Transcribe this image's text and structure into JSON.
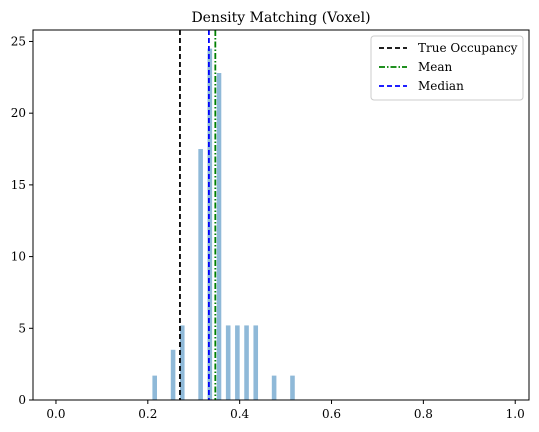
{
  "chart_data": {
    "type": "bar",
    "title": "Density Matching (Voxel)",
    "xlabel": "",
    "ylabel": "",
    "xlim": [
      -0.05,
      1.03
    ],
    "ylim": [
      0,
      25.8
    ],
    "xticks": [
      0.0,
      0.2,
      0.4,
      0.6,
      0.8,
      1.0
    ],
    "xtick_labels": [
      "0.0",
      "0.2",
      "0.4",
      "0.6",
      "0.8",
      "1.0"
    ],
    "yticks": [
      0,
      5,
      10,
      15,
      20,
      25
    ],
    "ytick_labels": [
      "0",
      "5",
      "10",
      "15",
      "20",
      "25"
    ],
    "grid": false,
    "legend_position": "top-right",
    "histogram": {
      "bin_width": 0.01,
      "color": "#8fb9d8",
      "bins": [
        {
          "x": 0.215,
          "y": 1.7
        },
        {
          "x": 0.255,
          "y": 3.5
        },
        {
          "x": 0.275,
          "y": 5.2
        },
        {
          "x": 0.315,
          "y": 17.5
        },
        {
          "x": 0.335,
          "y": 24.5
        },
        {
          "x": 0.355,
          "y": 22.8
        },
        {
          "x": 0.375,
          "y": 5.2
        },
        {
          "x": 0.395,
          "y": 5.2
        },
        {
          "x": 0.415,
          "y": 5.2
        },
        {
          "x": 0.435,
          "y": 5.2
        },
        {
          "x": 0.475,
          "y": 1.7
        },
        {
          "x": 0.515,
          "y": 1.7
        }
      ]
    },
    "vlines": [
      {
        "label": "True Occupancy",
        "x": 0.27,
        "color": "#000000",
        "style": "dashed"
      },
      {
        "label": "Mean",
        "x": 0.347,
        "color": "#008000",
        "style": "dashdot"
      },
      {
        "label": "Median",
        "x": 0.333,
        "color": "#0000ff",
        "style": "dashed"
      }
    ]
  }
}
